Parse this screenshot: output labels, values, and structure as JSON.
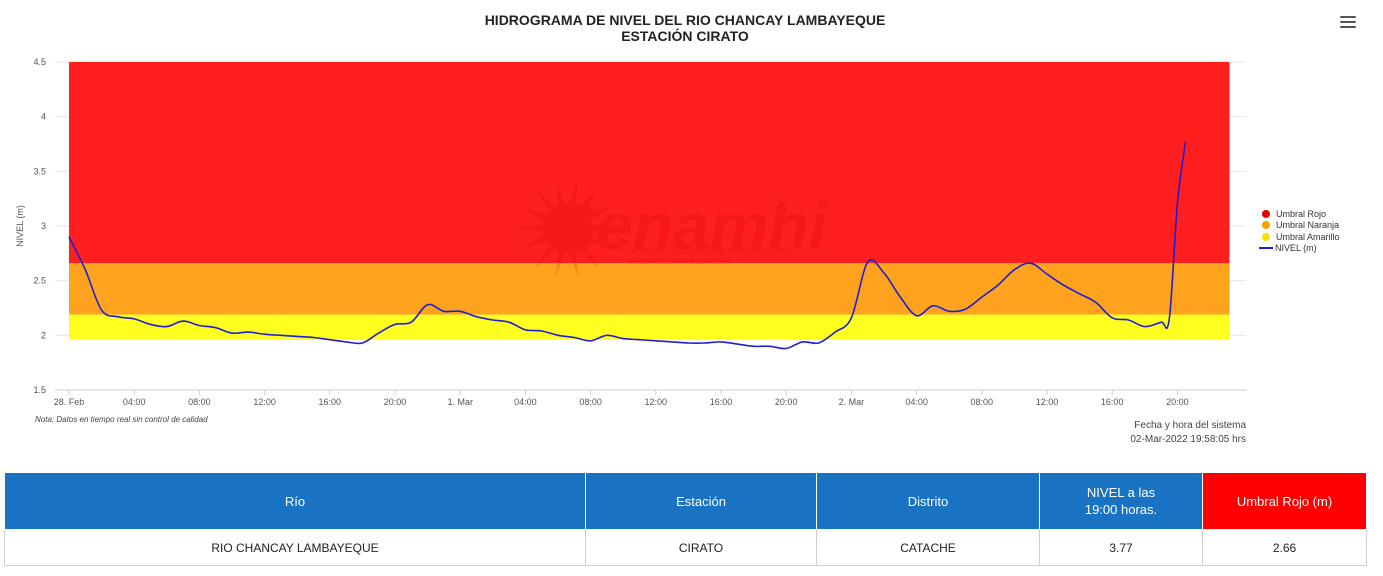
{
  "header": {
    "title_line1": "HIDROGRAMA DE NIVEL DEL RIO CHANCAY LAMBAYEQUE",
    "title_line2": "ESTACIÓN CIRATO",
    "menu_icon": "hamburger-menu-icon"
  },
  "watermark": {
    "brand": "Senamhi",
    "subtitle_line1": "SERVICIO NACIONAL DE METEOROLOGÍA",
    "subtitle_line2": "E HIDROLOGÍA DEL PERÚ"
  },
  "chart_data": {
    "type": "line",
    "title": "HIDROGRAMA DE NIVEL DEL RIO CHANCAY LAMBAYEQUE",
    "subtitle": "ESTACIÓN CIRATO",
    "ylabel": "NIVEL (m)",
    "xlabel": "",
    "ylim": [
      1.5,
      4.5
    ],
    "yticks": [
      "1.5",
      "2",
      "2.5",
      "3",
      "3.5",
      "4",
      "4.5"
    ],
    "x_start": "28. Feb 00:00",
    "x_hours_range": [
      0,
      52.5
    ],
    "xticks": [
      {
        "hour": 0,
        "label": "28. Feb"
      },
      {
        "hour": 4,
        "label": "04:00"
      },
      {
        "hour": 8,
        "label": "08:00"
      },
      {
        "hour": 12,
        "label": "12:00"
      },
      {
        "hour": 16,
        "label": "16:00"
      },
      {
        "hour": 20,
        "label": "20:00"
      },
      {
        "hour": 24,
        "label": "1. Mar"
      },
      {
        "hour": 28,
        "label": "04:00"
      },
      {
        "hour": 32,
        "label": "08:00"
      },
      {
        "hour": 36,
        "label": "12:00"
      },
      {
        "hour": 40,
        "label": "16:00"
      },
      {
        "hour": 44,
        "label": "20:00"
      },
      {
        "hour": 48,
        "label": "2. Mar"
      },
      {
        "hour": 52,
        "label": "04:00"
      },
      {
        "hour": 56,
        "label": "08:00"
      },
      {
        "hour": 60,
        "label": "12:00"
      },
      {
        "hour": 64,
        "label": "16:00"
      },
      {
        "hour": 68,
        "label": "20:00"
      }
    ],
    "x_axis_hours_shown": [
      0,
      71.2
    ],
    "threshold_bands": [
      {
        "name": "Umbral Amarillo",
        "from": 1.96,
        "to": 2.19,
        "color": "#ffff1f"
      },
      {
        "name": "Umbral Naranja",
        "from": 2.19,
        "to": 2.66,
        "color": "#ffa31f"
      },
      {
        "name": "Umbral Rojo",
        "from": 2.66,
        "to": 4.5,
        "color": "#ff1f1f"
      }
    ],
    "band_hour_range": [
      0,
      71.2
    ],
    "series": [
      {
        "name": "NIVEL (m)",
        "color": "#1f1fd1",
        "hours": [
          0,
          1,
          2,
          3,
          4,
          5,
          6,
          7,
          8,
          9,
          10,
          11,
          12,
          13,
          14,
          15,
          16,
          17,
          18,
          19,
          20,
          21,
          22,
          23,
          24,
          25,
          26,
          27,
          28,
          29,
          30,
          31,
          32,
          33,
          34,
          35,
          36,
          37,
          38,
          39,
          40,
          41,
          42,
          43,
          44,
          45,
          46,
          47,
          48,
          49,
          50,
          51,
          52,
          53,
          54,
          55,
          56,
          57,
          58,
          59,
          60,
          61,
          62,
          63,
          64,
          65,
          66,
          67,
          67.5,
          68,
          68.5
        ],
        "values": [
          2.9,
          2.6,
          2.23,
          2.17,
          2.15,
          2.1,
          2.08,
          2.13,
          2.09,
          2.07,
          2.02,
          2.03,
          2.01,
          2.0,
          1.99,
          1.98,
          1.96,
          1.94,
          1.93,
          2.02,
          2.1,
          2.12,
          2.28,
          2.22,
          2.22,
          2.17,
          2.14,
          2.12,
          2.05,
          2.04,
          2.0,
          1.98,
          1.95,
          2.0,
          1.97,
          1.96,
          1.95,
          1.94,
          1.93,
          1.93,
          1.94,
          1.92,
          1.9,
          1.9,
          1.88,
          1.94,
          1.93,
          2.03,
          2.16,
          2.67,
          2.57,
          2.35,
          2.18,
          2.27,
          2.22,
          2.24,
          2.35,
          2.46,
          2.6,
          2.66,
          2.56,
          2.46,
          2.38,
          2.3,
          2.16,
          2.14,
          2.08,
          2.12,
          2.15,
          3.2,
          3.77
        ]
      }
    ],
    "legend": {
      "placement": "right",
      "entries": [
        "Umbral Rojo",
        "Umbral Naranja",
        "Umbral Amarillo",
        "NIVEL (m)"
      ]
    },
    "grid": true
  },
  "legend_colors": {
    "rojo": "#e00000",
    "naranja": "#f5a300",
    "amarillo": "#f5e400",
    "nivel": "#1f1fd1"
  },
  "footnote": "Nota: Datos en tiempo real sin control de calidad",
  "system_date": {
    "label": "Fecha y hora del sistema",
    "value": "02-Mar-2022 19:58:05 hrs"
  },
  "table": {
    "headers": {
      "rio": "Río",
      "estacion": "Estación",
      "distrito": "Distrito",
      "nivel_line1": "NIVEL a las",
      "nivel_line2": "19:00 horas.",
      "umbral": "Umbral Rojo (m)"
    },
    "row": {
      "rio": "RIO CHANCAY LAMBAYEQUE",
      "estacion": "CIRATO",
      "distrito": "CATACHE",
      "nivel": "3.77",
      "umbral": "2.66"
    }
  }
}
